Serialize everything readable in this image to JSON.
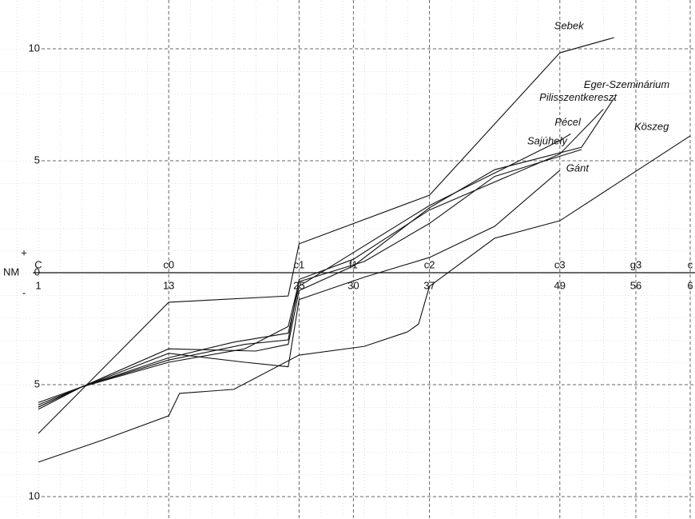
{
  "chart_data": {
    "type": "line",
    "y_axis_label": "NM",
    "y_sign_labels": [
      "+",
      "-"
    ],
    "xlim": [
      0.5,
      61.2
    ],
    "ylim": [
      -10.5,
      10.5
    ],
    "xticks": [
      1,
      13,
      25,
      30,
      37,
      49,
      56,
      {
        "value": 61,
        "label": "6"
      }
    ],
    "note_labels": [
      "C",
      "c0",
      "c1",
      "f1",
      "c2",
      "c3",
      "g3",
      "c"
    ],
    "yticks": [
      10,
      5,
      0,
      {
        "value": -5,
        "label": "5"
      },
      {
        "value": -10,
        "label": "10"
      }
    ],
    "grid": true,
    "series": [
      {
        "name": "Sebek",
        "color": "#111111",
        "x": [
          1,
          13,
          24,
          25,
          37,
          49,
          54
        ],
        "values": [
          -7.18,
          -1.32,
          -1.04,
          1.29,
          3.46,
          9.82,
          10.5
        ]
      },
      {
        "name": "Eger-Szeminárium",
        "color": "#111111",
        "x": [
          1,
          5,
          13,
          21,
          24,
          25,
          30,
          37,
          43,
          51,
          54
        ],
        "values": [
          -5.8,
          -5.1,
          -3.4,
          -3.5,
          -3.2,
          -0.8,
          0.3,
          2.9,
          4.6,
          5.6,
          7.8
        ]
      },
      {
        "name": "Pilisszentkereszt",
        "color": "#111111",
        "x": [
          1,
          5,
          13,
          20,
          24,
          25,
          30,
          37,
          49,
          53
        ],
        "values": [
          -6.0,
          -5.1,
          -3.9,
          -3.2,
          -3.0,
          -0.3,
          0.6,
          2.8,
          5.3,
          7.3
        ]
      },
      {
        "name": "Pécel",
        "color": "#111111",
        "x": [
          1,
          5,
          13,
          19,
          24,
          25,
          30,
          37,
          49,
          50
        ],
        "values": [
          -6.0,
          -5.1,
          -3.8,
          -3.1,
          -2.7,
          -0.6,
          0.9,
          3.0,
          5.9,
          6.2
        ]
      },
      {
        "name": "Sajúhely",
        "color": "#111111",
        "x": [
          1,
          5,
          13,
          20,
          24,
          25,
          31,
          37,
          43,
          51
        ],
        "values": [
          -6.1,
          -5.1,
          -4.0,
          -3.4,
          -2.4,
          -0.4,
          0.5,
          2.2,
          4.3,
          5.5
        ]
      },
      {
        "name": "Gánt",
        "color": "#111111",
        "x": [
          1,
          5,
          13,
          20,
          24,
          25,
          31,
          37,
          43,
          49
        ],
        "values": [
          -5.9,
          -5.1,
          -3.6,
          -4.0,
          -4.2,
          -1.2,
          -0.2,
          0.68,
          2.07,
          4.57
        ]
      },
      {
        "name": "Köszeg",
        "color": "#111111",
        "x": [
          1,
          7,
          13,
          14,
          19,
          25,
          31,
          35,
          36,
          37,
          43,
          49,
          61
        ],
        "values": [
          -8.46,
          -7.46,
          -6.39,
          -5.39,
          -5.21,
          -3.68,
          -3.29,
          -2.64,
          -2.29,
          -0.61,
          1.54,
          2.32,
          6.11
        ]
      }
    ]
  }
}
